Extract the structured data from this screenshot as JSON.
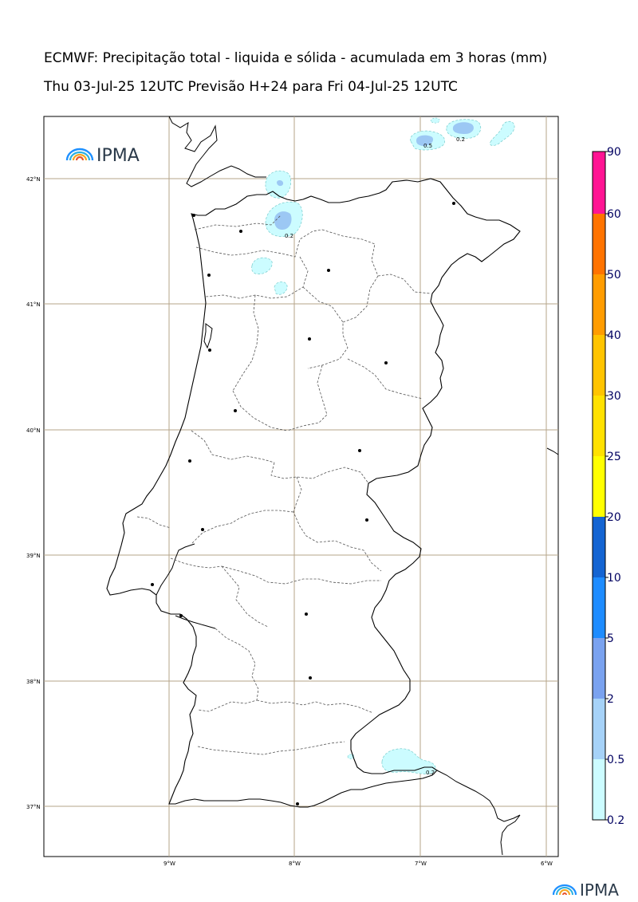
{
  "header": {
    "title": "ECMWF: Precipitação total - liquida e sólida - acumulada em 3 horas (mm)",
    "subtitle": "Thu 03-Jul-25 12UTC Previsão H+24 para Fri 04-Jul-25 12UTC"
  },
  "map": {
    "lat_labels": [
      "42°N",
      "41°N",
      "40°N",
      "39°N",
      "38°N",
      "37°N"
    ],
    "lon_labels": [
      "9°W",
      "8°W",
      "7°W",
      "6°W"
    ],
    "contour_labels": [
      "0.2",
      "0.5",
      "0.2",
      "0.2"
    ],
    "logo_text": "IPMA",
    "colors": {
      "coast": "#000000",
      "grid": "#b5a48a",
      "light_cyan": "#ccfcff",
      "light_blue": "#9cc8f4",
      "mid_blue": "#7ca4ee"
    }
  },
  "colorbar": {
    "levels": [
      "0.2",
      "0.5",
      "2",
      "5",
      "10",
      "20",
      "25",
      "30",
      "40",
      "50",
      "60",
      "90"
    ],
    "colors": [
      "#ccfcff",
      "#a6d2f8",
      "#7aa2ef",
      "#1e8cff",
      "#1464d2",
      "#ffff00",
      "#ffe100",
      "#ffc400",
      "#ff9c00",
      "#ff7300",
      "#ff0000",
      "#ff1493"
    ]
  },
  "footer": {
    "logo_text": "IPMA"
  }
}
